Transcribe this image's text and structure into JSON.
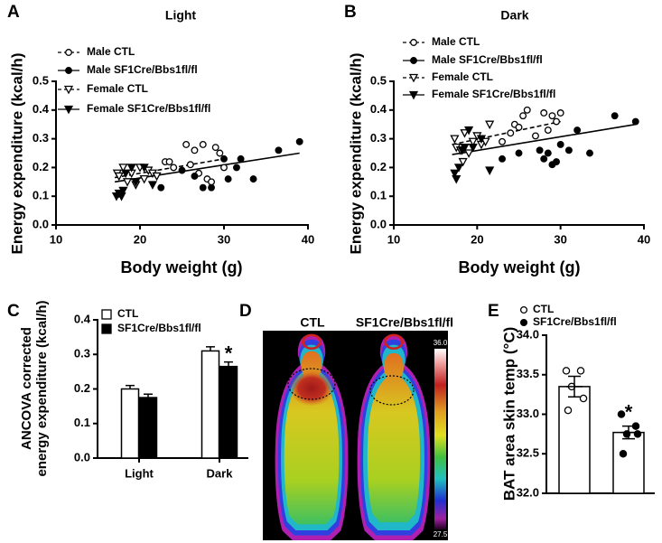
{
  "chart_data": [
    {
      "type": "scatter",
      "panel": "A",
      "title": "Light",
      "xlabel": "Body weight (g)",
      "ylabel": "Energy expenditure (kcal/h)",
      "xlim": [
        10,
        40
      ],
      "xticks": [
        10,
        20,
        30,
        40
      ],
      "ylim": [
        0,
        0.5
      ],
      "yticks": [
        {
          "value": 0,
          "label": "0.0"
        },
        0.1,
        0.2,
        0.3,
        0.4,
        0.5
      ],
      "series": [
        {
          "name": "Male CTL",
          "color": "#000000",
          "marker": "circle",
          "filled": false,
          "line": "dashed",
          "x": [
            23,
            23.5,
            24,
            25.5,
            26,
            26.5,
            27,
            27.5,
            28,
            28.5,
            29,
            29.5,
            30
          ],
          "values": [
            0.22,
            0.22,
            0.2,
            0.28,
            0.21,
            0.26,
            0.18,
            0.28,
            0.16,
            0.15,
            0.27,
            0.25,
            0.2
          ]
        },
        {
          "name": "Male SF1Cre/Bbs1fl/fl",
          "color": "#000000",
          "marker": "circle",
          "filled": true,
          "line": "solid",
          "x": [
            22.5,
            25,
            26.5,
            27.5,
            28.5,
            30,
            30.5,
            31.5,
            32,
            33.5,
            36.5,
            39
          ],
          "values": [
            0.13,
            0.19,
            0.17,
            0.13,
            0.13,
            0.23,
            0.16,
            0.2,
            0.23,
            0.16,
            0.26,
            0.29
          ]
        },
        {
          "name": "Female CTL",
          "color": "#000000",
          "marker": "triangle-down",
          "filled": false,
          "line": "dashed",
          "x": [
            17.3,
            17.5,
            18,
            18.5,
            19,
            19.5,
            20,
            20.5,
            21,
            21.5,
            22
          ],
          "values": [
            0.18,
            0.17,
            0.2,
            0.15,
            0.18,
            0.14,
            0.2,
            0.16,
            0.19,
            0.18,
            0.17
          ]
        },
        {
          "name": "Female SF1Cre/Bbs1fl/fl",
          "color": "#000000",
          "marker": "triangle-down",
          "filled": true,
          "line": "solid",
          "x": [
            17.2,
            17.5,
            17.8,
            18,
            18.3,
            19,
            19.5,
            20.5,
            21.5
          ],
          "values": [
            0.1,
            0.11,
            0.1,
            0.12,
            0.18,
            0.2,
            0.15,
            0.2,
            0.14
          ]
        }
      ],
      "fits": [
        {
          "line": "dashed",
          "x": [
            17,
            30
          ],
          "values": [
            0.165,
            0.23
          ]
        },
        {
          "line": "solid",
          "x": [
            17,
            39
          ],
          "values": [
            0.15,
            0.25
          ]
        }
      ]
    },
    {
      "type": "scatter",
      "panel": "B",
      "title": "Dark",
      "xlabel": "Body weight (g)",
      "ylabel": "Energy expenditure (kcal/h)",
      "xlim": [
        10,
        40
      ],
      "xticks": [
        10,
        20,
        30,
        40
      ],
      "ylim": [
        0,
        0.5
      ],
      "yticks": [
        {
          "value": 0,
          "label": "0.0"
        },
        0.1,
        0.2,
        0.3,
        0.4,
        0.5
      ],
      "series": [
        {
          "name": "Male CTL",
          "color": "#000000",
          "marker": "circle",
          "filled": false,
          "line": "dashed",
          "x": [
            23,
            24,
            24.5,
            25,
            25.5,
            26,
            27,
            28,
            28.5,
            29,
            29.5,
            30
          ],
          "values": [
            0.29,
            0.32,
            0.35,
            0.34,
            0.38,
            0.4,
            0.31,
            0.39,
            0.33,
            0.38,
            0.36,
            0.39
          ]
        },
        {
          "name": "Male SF1Cre/Bbs1fl/fl",
          "color": "#000000",
          "marker": "circle",
          "filled": true,
          "line": "solid",
          "x": [
            23,
            25,
            27.5,
            28,
            28.5,
            29,
            29.5,
            30,
            31,
            32,
            33.5,
            36.5,
            39
          ],
          "values": [
            0.23,
            0.25,
            0.26,
            0.23,
            0.25,
            0.21,
            0.22,
            0.28,
            0.26,
            0.33,
            0.25,
            0.38,
            0.36
          ]
        },
        {
          "name": "Female CTL",
          "color": "#000000",
          "marker": "triangle-down",
          "filled": false,
          "line": "dashed",
          "x": [
            17.3,
            17.5,
            18,
            18.3,
            18.5,
            19,
            19.5,
            20,
            20.5,
            21,
            21.5
          ],
          "values": [
            0.3,
            0.27,
            0.26,
            0.22,
            0.32,
            0.25,
            0.29,
            0.31,
            0.28,
            0.29,
            0.35
          ]
        },
        {
          "name": "Female SF1Cre/Bbs1fl/fl",
          "color": "#000000",
          "marker": "triangle-down",
          "filled": true,
          "line": "solid",
          "x": [
            17.3,
            17.5,
            17.8,
            18.2,
            18.5,
            19,
            19.5,
            20.5,
            21.5
          ],
          "values": [
            0.18,
            0.16,
            0.2,
            0.26,
            0.27,
            0.33,
            0.27,
            0.3,
            0.19
          ]
        }
      ],
      "fits": [
        {
          "line": "dashed",
          "x": [
            17,
            30
          ],
          "values": [
            0.28,
            0.36
          ]
        },
        {
          "line": "solid",
          "x": [
            17,
            39
          ],
          "values": [
            0.245,
            0.35
          ]
        }
      ]
    },
    {
      "type": "bar",
      "panel": "C",
      "ylabel": [
        "ANCOVA corrected",
        "energy expenditure (kcal/h)"
      ],
      "categories": [
        "Light",
        "Dark"
      ],
      "ylim": [
        0,
        0.4
      ],
      "yticks": [
        {
          "value": 0,
          "label": "0.0"
        },
        0.1,
        0.2,
        0.3,
        0.4
      ],
      "series": [
        {
          "name": "CTL",
          "color": "#ffffff",
          "values": [
            0.2,
            0.31
          ],
          "errors": [
            0.01,
            0.012
          ]
        },
        {
          "name": "SF1Cre/Bbs1fl/fl",
          "color": "#000000",
          "values": [
            0.175,
            0.265
          ],
          "errors": [
            0.01,
            0.013
          ]
        }
      ],
      "annotation": "*"
    },
    {
      "type": "thermal-image",
      "panel": "D",
      "labels": [
        "CTL",
        "SF1Cre/Bbs1fl/fl"
      ],
      "clim": [
        27.5,
        36
      ],
      "cticks": [
        {
          "value": 36,
          "label": "36.0"
        },
        27.5
      ]
    },
    {
      "type": "dotbar",
      "panel": "E",
      "ylabel": "BAT area skin temp (°C)",
      "categories": [
        null,
        null
      ],
      "ylim": [
        32,
        34
      ],
      "yticks": [
        {
          "value": 32,
          "label": "32.0"
        },
        32.5,
        {
          "value": 33,
          "label": "33.0"
        },
        33.5,
        {
          "value": 34,
          "label": "34.0"
        }
      ],
      "legend": [
        "CTL",
        "SF1Cre/Bbs1fl/fl"
      ],
      "colors": [
        "#ffffff",
        "#000000"
      ],
      "values": [
        33.35,
        32.77
      ],
      "errors": [
        0.13,
        0.08
      ],
      "points": [
        [
          33.55,
          33.55,
          33.35,
          33.2,
          33.05
        ],
        [
          33.0,
          32.85,
          32.75,
          32.75,
          32.5
        ]
      ],
      "annotation": "*"
    }
  ]
}
